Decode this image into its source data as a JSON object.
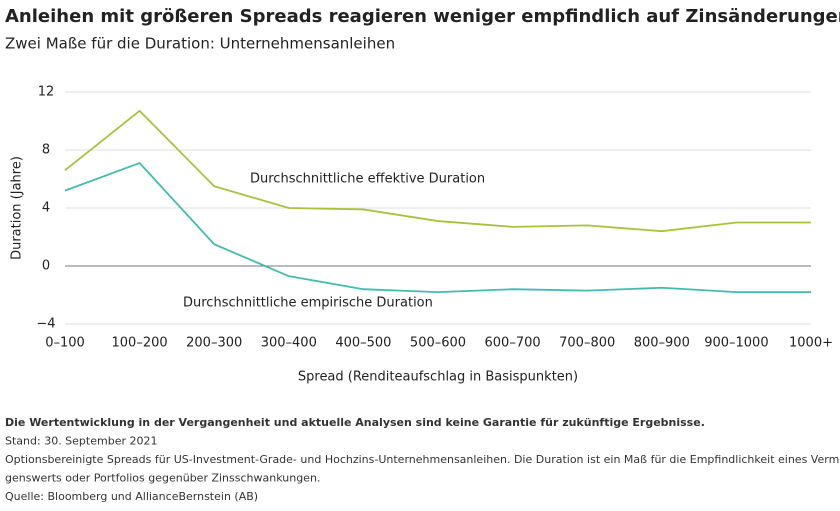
{
  "chart_data": {
    "type": "line",
    "title": "Anleihen mit größeren Spreads reagieren weniger empfindlich auf Zinsänderungen",
    "subtitle": "Zwei Maße für die Duration: Unternehmensanleihen",
    "x_label": "Spread (Renditeaufschlag in Basispunkten)",
    "y_label": "Duration (Jahre)",
    "categories": [
      "0–100",
      "100–200",
      "200–300",
      "300–400",
      "400–500",
      "500–600",
      "600–700",
      "700–800",
      "800–900",
      "900–1000",
      "1000+"
    ],
    "series": [
      {
        "name": "Durchschnittliche effektive Duration",
        "color": "#a9c23b",
        "values": [
          6.6,
          10.7,
          5.5,
          4.0,
          3.9,
          3.1,
          2.7,
          2.8,
          2.4,
          3.0,
          3.0
        ]
      },
      {
        "name": "Durchschnittliche empirische Duration",
        "color": "#40bcae",
        "values": [
          5.2,
          7.1,
          1.5,
          -0.7,
          -1.6,
          -1.8,
          -1.6,
          -1.7,
          -1.5,
          -1.8,
          -1.8
        ]
      }
    ],
    "ylim": [
      -4,
      12
    ],
    "yticks": [
      {
        "value": -4,
        "label": "−4"
      },
      0,
      4,
      8,
      12
    ],
    "grid": true,
    "notes": [
      "Die Wertentwicklung in der Vergangenheit und aktuelle Analysen sind keine Garantie für zukünftige Ergebnisse.",
      "Stand: 30. September 2021",
      "Optionsbereinigte Spreads für US-Investment-Grade- und Hochzins-Unternehmensanleihen. Die Duration ist ein Maß für die Empfindlichkeit eines Vermö-",
      "genswerts oder Portfolios gegenüber Zinsschwankungen.",
      "Quelle: Bloomberg und AllianceBernstein (AB)"
    ]
  }
}
